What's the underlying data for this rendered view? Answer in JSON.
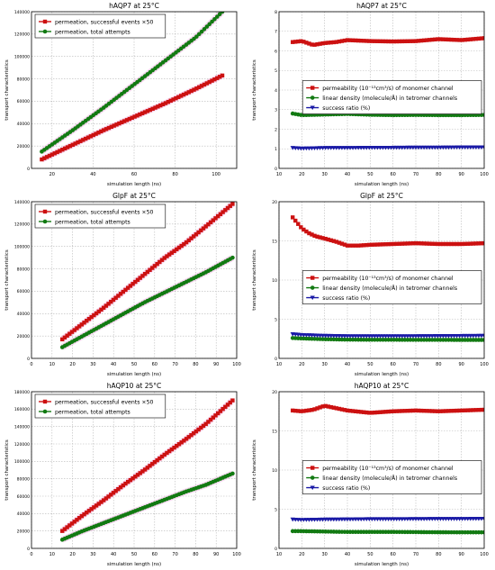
{
  "colors": {
    "red": "#cc1111",
    "green": "#127a12",
    "blue": "#1a1aa6",
    "grid": "#b8b8b8",
    "glow": "#f2b8e6"
  },
  "chart_data": [
    {
      "type": "line",
      "title": "hAQP7 at 25°C",
      "xlabel": "simulation length (ns)",
      "ylabel": "transport characteristics",
      "xlim": [
        10,
        110
      ],
      "ylim": [
        0,
        140000
      ],
      "xticks": [
        20,
        40,
        60,
        80,
        100
      ],
      "yticks": [
        0,
        20000,
        40000,
        60000,
        80000,
        100000,
        120000,
        140000
      ],
      "ytick_labels": [
        "0",
        "20000",
        "40000",
        "60000",
        "80000",
        "100000",
        "120000",
        "140000"
      ],
      "grid": true,
      "legend_position": "top-left",
      "series": [
        {
          "name": "permeation, successful events ×50",
          "color": "red",
          "marker": "square",
          "x": [
            15,
            30,
            45,
            60,
            75,
            90,
            103
          ],
          "y": [
            8000,
            21000,
            34000,
            46000,
            58000,
            71000,
            83000
          ]
        },
        {
          "name": "permeation, total attempts",
          "color": "green",
          "marker": "circle",
          "x": [
            15,
            30,
            45,
            60,
            75,
            90,
            103
          ],
          "y": [
            15000,
            34000,
            54000,
            75000,
            96000,
            117000,
            140000
          ]
        }
      ]
    },
    {
      "type": "line",
      "title": "hAQP7 at 25°C",
      "xlabel": "simulation length (ns)",
      "ylabel": "transport characteristics",
      "xlim": [
        10,
        100
      ],
      "ylim": [
        0,
        8
      ],
      "xticks": [
        10,
        20,
        30,
        40,
        50,
        60,
        70,
        80,
        90,
        100
      ],
      "yticks": [
        0,
        1,
        2,
        3,
        4,
        5,
        6,
        7,
        8
      ],
      "ytick_labels": [
        "0",
        "1",
        "2",
        "3",
        "4",
        "5",
        "6",
        "7",
        "8"
      ],
      "grid": true,
      "legend_position": "center-right",
      "series": [
        {
          "name": "permeability (10⁻¹³cm³/s) of monomer channel",
          "color": "red",
          "marker": "square",
          "x": [
            16,
            20,
            25,
            30,
            35,
            40,
            50,
            60,
            70,
            80,
            90,
            100
          ],
          "y": [
            6.45,
            6.5,
            6.3,
            6.4,
            6.45,
            6.55,
            6.5,
            6.48,
            6.5,
            6.6,
            6.55,
            6.65
          ]
        },
        {
          "name": "linear density (molecule/Å) in tetromer channels",
          "color": "green",
          "marker": "circle",
          "x": [
            16,
            20,
            30,
            40,
            50,
            60,
            70,
            80,
            90,
            100
          ],
          "y": [
            2.8,
            2.72,
            2.75,
            2.78,
            2.74,
            2.72,
            2.73,
            2.72,
            2.72,
            2.73
          ]
        },
        {
          "name": "success ratio (%)",
          "color": "blue",
          "marker": "triangle",
          "x": [
            16,
            20,
            30,
            40,
            50,
            60,
            70,
            80,
            90,
            100
          ],
          "y": [
            1.05,
            1.02,
            1.05,
            1.05,
            1.06,
            1.06,
            1.07,
            1.07,
            1.08,
            1.08
          ]
        }
      ]
    },
    {
      "type": "line",
      "title": "GlpF at 25°C",
      "xlabel": "simulation length (ns)",
      "ylabel": "transport characteristics",
      "xlim": [
        0,
        100
      ],
      "ylim": [
        0,
        140000
      ],
      "xticks": [
        0,
        10,
        20,
        30,
        40,
        50,
        60,
        70,
        80,
        90,
        100
      ],
      "yticks": [
        0,
        20000,
        40000,
        60000,
        80000,
        100000,
        120000,
        140000
      ],
      "ytick_labels": [
        "0",
        "20000",
        "40000",
        "60000",
        "80000",
        "100000",
        "120000",
        "140000"
      ],
      "grid": true,
      "legend_position": "top-left",
      "series": [
        {
          "name": "permeation, successful events ×50",
          "color": "red",
          "marker": "square",
          "x": [
            15,
            25,
            35,
            45,
            55,
            65,
            75,
            85,
            98
          ],
          "y": [
            17000,
            31000,
            45000,
            60000,
            75000,
            90000,
            103000,
            118000,
            138000
          ]
        },
        {
          "name": "permeation, total attempts",
          "color": "green",
          "marker": "circle",
          "x": [
            15,
            25,
            35,
            45,
            55,
            65,
            75,
            85,
            98
          ],
          "y": [
            10000,
            20000,
            30000,
            40000,
            50000,
            59000,
            68000,
            77000,
            90000
          ]
        }
      ]
    },
    {
      "type": "line",
      "title": "GlpF at 25°C",
      "xlabel": "simulation length (ns)",
      "ylabel": "transport characteristics",
      "xlim": [
        10,
        100
      ],
      "ylim": [
        0,
        20
      ],
      "xticks": [
        10,
        20,
        30,
        40,
        50,
        60,
        70,
        80,
        90,
        100
      ],
      "yticks": [
        0,
        5,
        10,
        15,
        20
      ],
      "ytick_labels": [
        "0",
        "5",
        "10",
        "15",
        "20"
      ],
      "grid": true,
      "legend_position": "center-right",
      "series": [
        {
          "name": "permeability (10⁻¹³cm³/s) of monomer channel",
          "color": "red",
          "marker": "square",
          "x": [
            16,
            18,
            20,
            23,
            26,
            30,
            35,
            40,
            45,
            50,
            60,
            70,
            80,
            90,
            100
          ],
          "y": [
            18,
            17.3,
            16.6,
            16.0,
            15.6,
            15.3,
            14.9,
            14.4,
            14.4,
            14.5,
            14.6,
            14.7,
            14.6,
            14.6,
            14.7
          ]
        },
        {
          "name": "linear density (molecule/Å) in tetromer channels",
          "color": "green",
          "marker": "circle",
          "x": [
            16,
            20,
            30,
            40,
            50,
            60,
            70,
            80,
            90,
            100
          ],
          "y": [
            2.6,
            2.55,
            2.45,
            2.4,
            2.38,
            2.38,
            2.37,
            2.37,
            2.36,
            2.36
          ]
        },
        {
          "name": "success ratio (%)",
          "color": "blue",
          "marker": "triangle",
          "x": [
            16,
            20,
            30,
            40,
            50,
            60,
            70,
            80,
            90,
            100
          ],
          "y": [
            3.1,
            3.0,
            2.9,
            2.85,
            2.85,
            2.85,
            2.85,
            2.87,
            2.88,
            2.9
          ]
        }
      ]
    },
    {
      "type": "line",
      "title": "hAQP10 at 25°C",
      "xlabel": "simulation length (ns)",
      "ylabel": "transport characteristics",
      "xlim": [
        0,
        100
      ],
      "ylim": [
        0,
        180000
      ],
      "xticks": [
        0,
        10,
        20,
        30,
        40,
        50,
        60,
        70,
        80,
        90,
        100
      ],
      "yticks": [
        0,
        20000,
        40000,
        60000,
        80000,
        100000,
        120000,
        140000,
        160000,
        180000
      ],
      "ytick_labels": [
        "0",
        "20000",
        "40000",
        "60000",
        "80000",
        "100000",
        "120000",
        "140000",
        "160000",
        "180000"
      ],
      "grid": true,
      "legend_position": "top-left",
      "series": [
        {
          "name": "permeation, successful events ×50",
          "color": "red",
          "marker": "square",
          "x": [
            15,
            25,
            35,
            45,
            55,
            65,
            75,
            85,
            98
          ],
          "y": [
            20000,
            38000,
            55000,
            73000,
            90000,
            108000,
            125000,
            143000,
            170000
          ]
        },
        {
          "name": "permeation, total attempts",
          "color": "green",
          "marker": "circle",
          "x": [
            15,
            25,
            35,
            45,
            55,
            65,
            75,
            85,
            98
          ],
          "y": [
            10000,
            20000,
            29000,
            38000,
            47000,
            56000,
            65000,
            73000,
            86000
          ]
        }
      ]
    },
    {
      "type": "line",
      "title": "hAQP10 at 25°C",
      "xlabel": "simulation length (ns)",
      "ylabel": "transport characteristics",
      "xlim": [
        10,
        100
      ],
      "ylim": [
        0,
        20
      ],
      "xticks": [
        10,
        20,
        30,
        40,
        50,
        60,
        70,
        80,
        90,
        100
      ],
      "yticks": [
        0,
        5,
        10,
        15,
        20
      ],
      "ytick_labels": [
        "0",
        "5",
        "10",
        "15",
        "20"
      ],
      "grid": true,
      "legend_position": "center-right",
      "series": [
        {
          "name": "permeability (10⁻¹³cm³/s) of monomer channel",
          "color": "red",
          "marker": "square",
          "x": [
            16,
            20,
            25,
            30,
            35,
            40,
            50,
            60,
            70,
            80,
            90,
            100
          ],
          "y": [
            17.6,
            17.5,
            17.7,
            18.2,
            17.9,
            17.6,
            17.3,
            17.5,
            17.6,
            17.5,
            17.6,
            17.7
          ]
        },
        {
          "name": "linear density (molecule/Å) in tetromer channels",
          "color": "green",
          "marker": "circle",
          "x": [
            16,
            20,
            30,
            40,
            50,
            60,
            70,
            80,
            90,
            100
          ],
          "y": [
            2.2,
            2.2,
            2.15,
            2.1,
            2.1,
            2.1,
            2.08,
            2.06,
            2.05,
            2.05
          ]
        },
        {
          "name": "success ratio (%)",
          "color": "blue",
          "marker": "triangle",
          "x": [
            16,
            20,
            30,
            40,
            50,
            60,
            70,
            80,
            90,
            100
          ],
          "y": [
            3.7,
            3.65,
            3.7,
            3.72,
            3.75,
            3.75,
            3.76,
            3.78,
            3.78,
            3.8
          ]
        }
      ]
    }
  ]
}
